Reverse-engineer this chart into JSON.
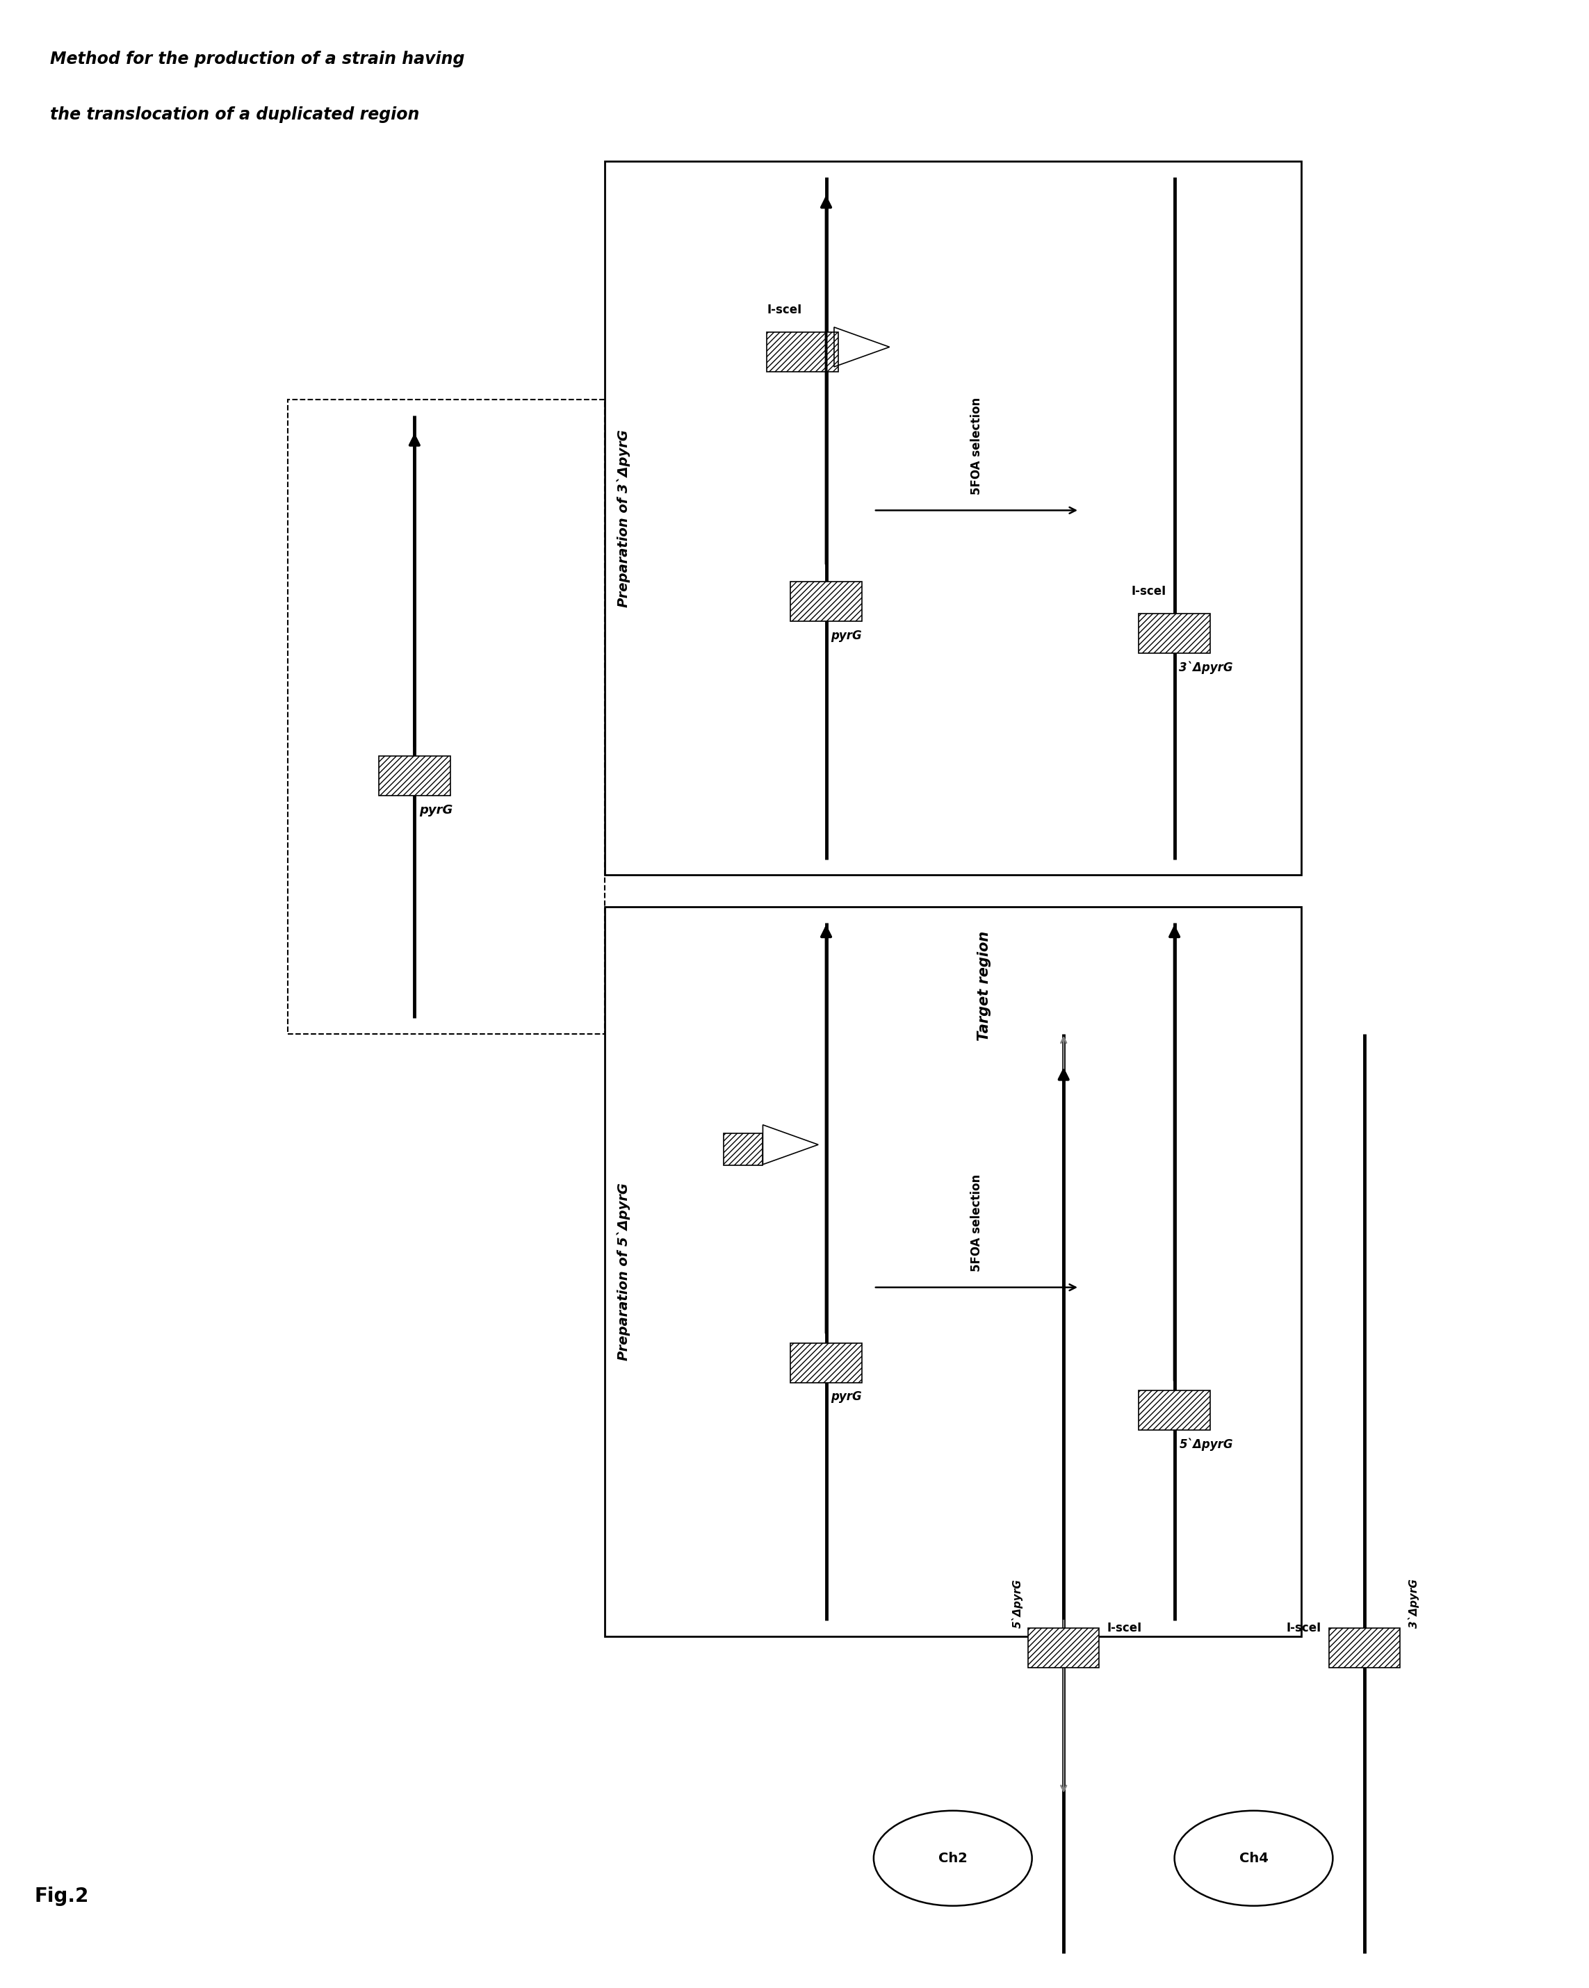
{
  "fig_label": "Fig.2",
  "title_line1": "Method for the production of a strain having",
  "title_line2": "the translocation of a duplicated region",
  "bg_color": "#ffffff",
  "box_left_title": "Preparation of 5`ΔpyrG",
  "box_right_title": "Preparation of 3`ΔpyrG",
  "foaa_label": "5FOA selection",
  "pyrg_label": "pyrG",
  "delta5_label": "5`ΔpyrG",
  "delta3_label": "3`ΔpyrG",
  "iscei_label": "I-sceI",
  "target_region_label": "Target region",
  "ch2_label": "Ch2",
  "ch4_label": "Ch4"
}
